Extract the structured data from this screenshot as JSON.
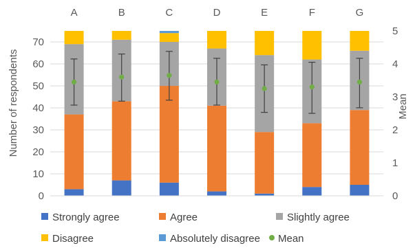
{
  "chart_data": {
    "type": "bar",
    "stacked": true,
    "categories": [
      "A",
      "B",
      "C",
      "D",
      "E",
      "F",
      "G"
    ],
    "series": [
      {
        "name": "Strongly agree",
        "color": "#4472c4",
        "values": [
          3,
          7,
          6,
          2,
          1,
          4,
          5
        ]
      },
      {
        "name": "Agree",
        "color": "#ed7d31",
        "values": [
          34,
          36,
          44,
          39,
          28,
          29,
          34
        ]
      },
      {
        "name": "Slightly agree",
        "color": "#a5a5a5",
        "values": [
          32,
          28,
          20,
          26,
          35,
          29,
          27
        ]
      },
      {
        "name": "Disagree",
        "color": "#ffc000",
        "values": [
          6,
          4,
          4,
          8,
          11,
          13,
          9
        ]
      },
      {
        "name": "Absolutely disagree",
        "color": "#5b9bd5",
        "values": [
          0,
          0,
          1,
          0,
          0,
          0,
          0
        ]
      }
    ],
    "mean": {
      "name": "Mean",
      "color": "#70ad47",
      "values": [
        3.45,
        3.6,
        3.65,
        3.45,
        3.25,
        3.3,
        3.45
      ],
      "error_low": [
        2.75,
        2.87,
        2.9,
        2.75,
        2.53,
        2.5,
        2.67
      ],
      "error_high": [
        4.15,
        4.3,
        4.38,
        4.17,
        3.97,
        4.05,
        4.17
      ]
    },
    "ylabel": "Number of respondents",
    "ylabel_right": "Mean",
    "ylim": [
      0,
      75
    ],
    "ylim_right": [
      0,
      5
    ],
    "yticks": [
      0,
      10,
      20,
      30,
      40,
      50,
      60,
      70
    ],
    "yticks_right": [
      0,
      1,
      2,
      3,
      4,
      5
    ],
    "grid": true,
    "legend_position": "bottom"
  }
}
